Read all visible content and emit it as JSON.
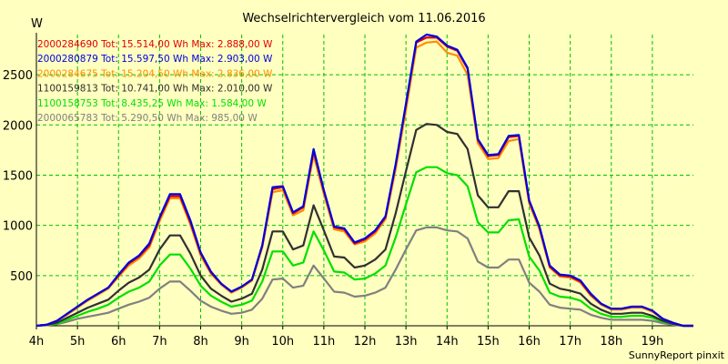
{
  "chart_data": {
    "type": "line",
    "title": "Wechselrichtervergleich vom 11.06.2016",
    "ylabel": "W",
    "xlabel": "",
    "footer": "SunnyReport pinxit",
    "ylim": [
      0,
      2900
    ],
    "xlim": [
      4,
      20
    ],
    "y_ticks": [
      500,
      1000,
      1500,
      2000,
      2500
    ],
    "x_ticks": [
      "4h",
      "5h",
      "6h",
      "7h",
      "8h",
      "9h",
      "10h",
      "11h",
      "12h",
      "13h",
      "14h",
      "15h",
      "16h",
      "17h",
      "18h",
      "19h"
    ],
    "grid": true,
    "legend_position": "top-left",
    "x": [
      4.0,
      4.25,
      4.5,
      4.75,
      5.0,
      5.25,
      5.5,
      5.75,
      6.0,
      6.25,
      6.5,
      6.75,
      7.0,
      7.25,
      7.5,
      7.75,
      8.0,
      8.25,
      8.5,
      8.75,
      9.0,
      9.25,
      9.5,
      9.75,
      10.0,
      10.25,
      10.5,
      10.75,
      11.0,
      11.25,
      11.5,
      11.75,
      12.0,
      12.25,
      12.5,
      12.75,
      13.0,
      13.25,
      13.5,
      13.75,
      14.0,
      14.25,
      14.5,
      14.75,
      15.0,
      15.25,
      15.5,
      15.75,
      16.0,
      16.25,
      16.5,
      16.75,
      17.0,
      17.25,
      17.5,
      17.75,
      18.0,
      18.25,
      18.5,
      18.75,
      19.0,
      19.25,
      19.5,
      19.75,
      20.0
    ],
    "series": [
      {
        "label": "2000284690 Tot: 15.514,00 Wh Max: 2.888,00 W",
        "color": "#e00000",
        "values": [
          0,
          10,
          50,
          120,
          190,
          260,
          320,
          380,
          500,
          620,
          690,
          800,
          1070,
          1290,
          1290,
          1030,
          720,
          530,
          420,
          340,
          390,
          460,
          800,
          1360,
          1380,
          1120,
          1180,
          1740,
          1340,
          980,
          960,
          820,
          860,
          940,
          1080,
          1600,
          2200,
          2820,
          2870,
          2870,
          2780,
          2740,
          2560,
          1850,
          1690,
          1700,
          1880,
          1890,
          1240,
          980,
          590,
          500,
          490,
          440,
          310,
          220,
          170,
          170,
          190,
          190,
          150,
          70,
          30,
          0,
          0
        ]
      },
      {
        "label": "2000280879 Tot: 15.597,50 Wh Max: 2.903,00 W",
        "color": "#0000e0",
        "values": [
          0,
          10,
          50,
          120,
          190,
          260,
          320,
          380,
          510,
          630,
          700,
          820,
          1080,
          1310,
          1310,
          1050,
          730,
          540,
          420,
          340,
          390,
          460,
          800,
          1380,
          1390,
          1130,
          1190,
          1760,
          1350,
          990,
          970,
          830,
          870,
          950,
          1090,
          1610,
          2210,
          2830,
          2900,
          2880,
          2790,
          2750,
          2570,
          1860,
          1700,
          1710,
          1890,
          1900,
          1250,
          990,
          600,
          510,
          500,
          450,
          320,
          220,
          170,
          170,
          190,
          190,
          150,
          70,
          30,
          0,
          0
        ]
      },
      {
        "label": "2000284675 Tot: 15.204,50 Wh Max: 2.836,00 W",
        "color": "#ff8c00",
        "values": [
          0,
          10,
          50,
          110,
          180,
          250,
          310,
          370,
          490,
          600,
          670,
          780,
          1040,
          1270,
          1270,
          1010,
          700,
          520,
          410,
          330,
          380,
          450,
          780,
          1330,
          1350,
          1100,
          1150,
          1700,
          1310,
          960,
          940,
          810,
          840,
          920,
          1060,
          1560,
          2150,
          2770,
          2820,
          2830,
          2720,
          2690,
          2500,
          1820,
          1660,
          1670,
          1840,
          1860,
          1220,
          960,
          580,
          490,
          480,
          430,
          300,
          210,
          160,
          160,
          180,
          180,
          140,
          70,
          30,
          0,
          0
        ]
      },
      {
        "label": "1100159813 Tot: 10.741,00 Wh Max: 2.010,00 W",
        "color": "#303030",
        "values": [
          0,
          10,
          30,
          80,
          130,
          180,
          220,
          260,
          350,
          430,
          480,
          560,
          760,
          900,
          900,
          720,
          500,
          370,
          300,
          240,
          270,
          320,
          560,
          940,
          940,
          760,
          800,
          1200,
          950,
          690,
          680,
          580,
          600,
          660,
          760,
          1120,
          1540,
          1950,
          2010,
          2000,
          1930,
          1910,
          1760,
          1300,
          1180,
          1180,
          1340,
          1340,
          880,
          700,
          420,
          370,
          350,
          320,
          220,
          160,
          120,
          120,
          130,
          130,
          100,
          50,
          20,
          0,
          0
        ]
      },
      {
        "label": "1100158753 Tot: 8.435,25 Wh Max: 1.584,00 W",
        "color": "#00e000",
        "values": [
          0,
          10,
          20,
          60,
          100,
          140,
          170,
          210,
          280,
          340,
          380,
          440,
          600,
          710,
          710,
          570,
          400,
          300,
          240,
          190,
          210,
          250,
          440,
          740,
          740,
          600,
          630,
          940,
          750,
          540,
          530,
          460,
          470,
          520,
          600,
          880,
          1210,
          1530,
          1580,
          1580,
          1520,
          1500,
          1390,
          1030,
          930,
          930,
          1050,
          1060,
          690,
          550,
          330,
          290,
          280,
          250,
          170,
          120,
          90,
          90,
          100,
          100,
          80,
          40,
          20,
          0,
          0
        ]
      },
      {
        "label": "2000065783 Tot: 5.290,50 Wh Max: 985,00 W",
        "color": "#808080",
        "values": [
          0,
          5,
          15,
          40,
          70,
          90,
          110,
          130,
          170,
          210,
          240,
          280,
          370,
          440,
          440,
          350,
          250,
          190,
          150,
          120,
          130,
          160,
          270,
          460,
          470,
          380,
          400,
          600,
          470,
          340,
          330,
          290,
          300,
          330,
          380,
          560,
          760,
          950,
          980,
          980,
          950,
          940,
          870,
          640,
          580,
          580,
          660,
          660,
          430,
          340,
          210,
          180,
          170,
          160,
          110,
          80,
          60,
          60,
          60,
          60,
          50,
          25,
          10,
          0,
          0
        ]
      }
    ]
  }
}
